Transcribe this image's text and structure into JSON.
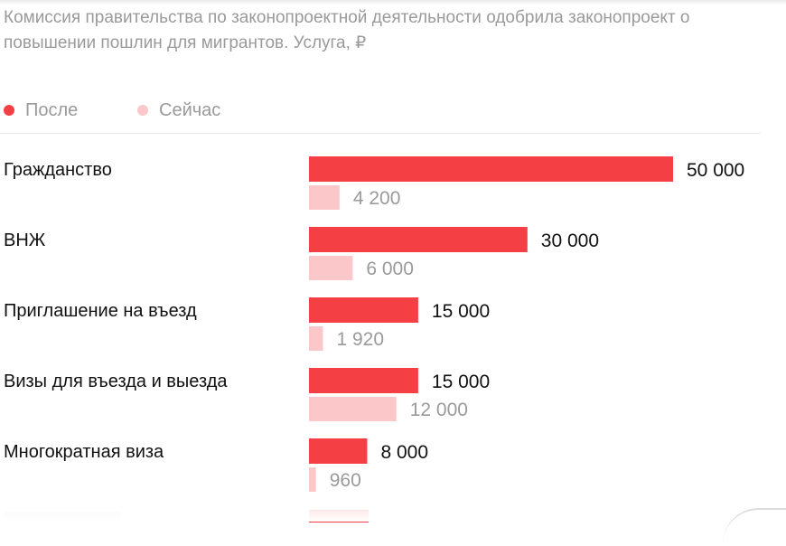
{
  "subtitle": "Комиссия правительства по законопроектной деятельности одобрила законопроект о повышении пошлин для мигрантов. Услуга, ₽",
  "legend": {
    "after": "После",
    "now": "Сейчас"
  },
  "colors": {
    "after": "#f43f44",
    "now": "#fcc7c9",
    "label": "#111111",
    "muted": "#9a9a9a"
  },
  "chart_data": {
    "type": "bar",
    "orientation": "horizontal",
    "categories": [
      "Гражданство",
      "ВНЖ",
      "Приглашение на въезд",
      "Визы для въезда и выезда",
      "Многократная виза"
    ],
    "series": [
      {
        "name": "После",
        "values": [
          50000,
          30000,
          15000,
          15000,
          8000
        ],
        "labels": [
          "50 000",
          "30 000",
          "15 000",
          "15 000",
          "8 000"
        ]
      },
      {
        "name": "Сейчас",
        "values": [
          4200,
          6000,
          1920,
          12000,
          960
        ],
        "labels": [
          "4 200",
          "6 000",
          "1 920",
          "12 000",
          "960"
        ]
      }
    ],
    "xlim": [
      0,
      50000
    ],
    "title": "",
    "xlabel": "",
    "ylabel": "",
    "grid": false,
    "legend_position": "top-left"
  }
}
